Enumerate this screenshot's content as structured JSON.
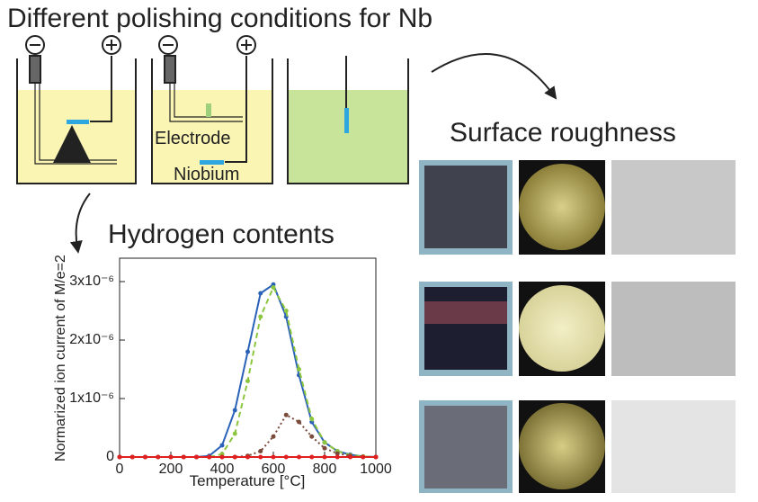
{
  "title": "Different polishing conditions for Nb",
  "surface_label": "Surface roughness",
  "setup_labels": {
    "electrode": "Electrode",
    "niobium": "Niobium"
  },
  "chart_data": {
    "type": "line",
    "title": "Hydrogen contents",
    "x_label": "Temperature [°C]",
    "y_label": "Normarized ion current of M/e=2",
    "x": [
      0,
      50,
      100,
      150,
      200,
      250,
      300,
      350,
      400,
      450,
      500,
      550,
      600,
      650,
      700,
      750,
      800,
      850,
      900,
      950,
      1000
    ],
    "xlim": [
      0,
      1000
    ],
    "xticks": [
      0,
      200,
      400,
      600,
      800,
      1000
    ],
    "ylim": [
      0,
      3.4e-06
    ],
    "yticks": [
      0,
      {
        "value": 1e-06,
        "label": "1x10⁻⁶"
      },
      {
        "value": 2e-06,
        "label": "2x10⁻⁶"
      },
      {
        "value": 3e-06,
        "label": "3x10⁻⁶"
      }
    ],
    "series": [
      {
        "color": "#2a62b8",
        "style": "solid",
        "values": [
          0,
          0,
          0,
          0,
          0,
          0,
          0,
          2e-08,
          2e-07,
          8e-07,
          1.8e-06,
          2.8e-06,
          2.95e-06,
          2.4e-06,
          1.4e-06,
          6e-07,
          2.5e-07,
          1e-07,
          4e-08,
          1e-08,
          0
        ]
      },
      {
        "color": "#8cc63f",
        "style": "dashed",
        "values": [
          0,
          0,
          0,
          0,
          0,
          0,
          0,
          0,
          5e-08,
          4e-07,
          1.3e-06,
          2.4e-06,
          2.9e-06,
          2.5e-06,
          1.5e-06,
          6.5e-07,
          2.5e-07,
          1e-07,
          3e-08,
          1e-08,
          0
        ]
      },
      {
        "color": "#7a4a3a",
        "style": "dotted",
        "values": [
          0,
          0,
          0,
          0,
          0,
          0,
          0,
          0,
          0,
          0,
          2e-08,
          1e-07,
          3.5e-07,
          7.2e-07,
          6e-07,
          3.5e-07,
          1.5e-07,
          6e-08,
          2e-08,
          0,
          0
        ]
      },
      {
        "color": "#e02020",
        "style": "solid",
        "values": [
          0,
          0,
          0,
          0,
          0,
          0,
          0,
          0,
          0,
          0,
          0,
          0,
          0,
          0,
          0,
          0,
          0,
          0,
          0,
          0,
          0
        ]
      }
    ]
  }
}
